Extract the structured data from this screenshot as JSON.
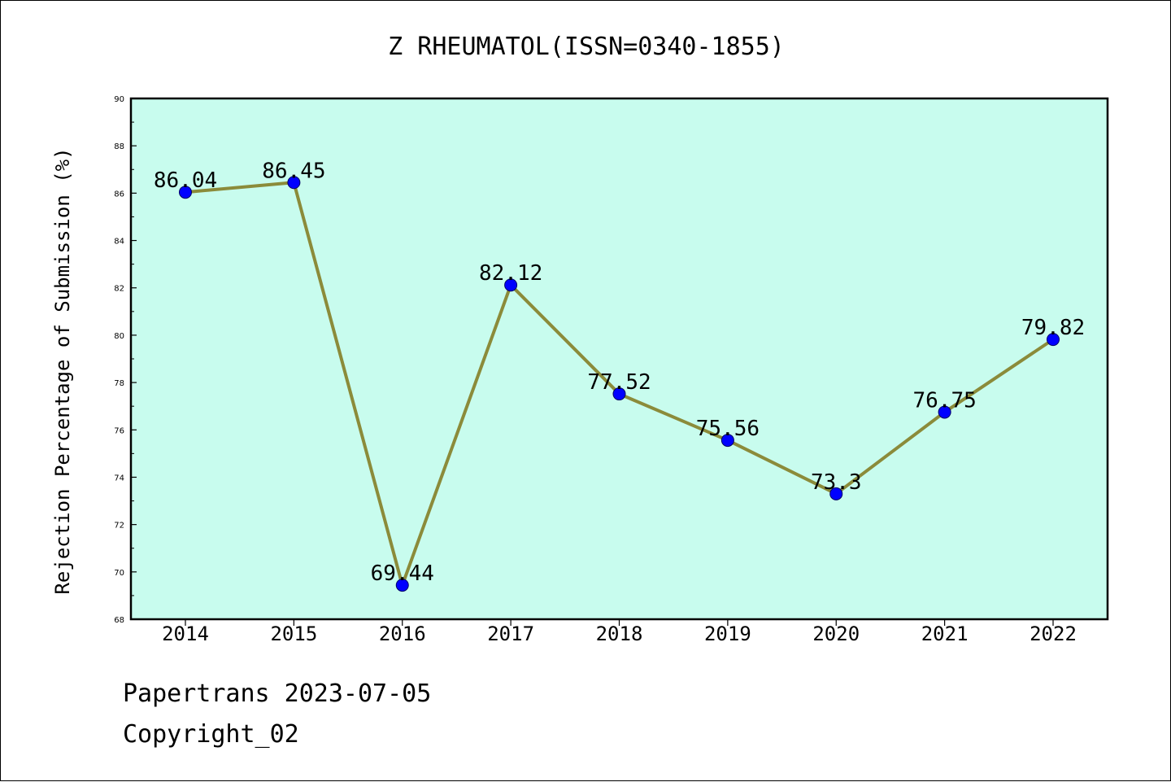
{
  "chart_data": {
    "type": "line",
    "title": "Z RHEUMATOL(ISSN=0340-1855)",
    "xlabel": "",
    "ylabel": "Rejection Percentage of Submission (%)",
    "categories": [
      "2014",
      "2015",
      "2016",
      "2017",
      "2018",
      "2019",
      "2020",
      "2021",
      "2022"
    ],
    "series": [
      {
        "values": [
          86.04,
          86.45,
          69.44,
          82.12,
          77.52,
          75.56,
          73.3,
          76.75,
          79.82
        ],
        "data_labels": [
          "86.04",
          "86.45",
          "69.44",
          "82.12",
          "77.52",
          "75.56",
          "73.3",
          "76.75",
          "79.82"
        ],
        "line_color": "#8b8b3a",
        "marker_color": "#0000ff"
      }
    ],
    "ylim": [
      68,
      90
    ],
    "yticks": [
      "68",
      "70",
      "72",
      "74",
      "76",
      "78",
      "80",
      "82",
      "84",
      "86",
      "88",
      "90"
    ],
    "plot_background": "#c8fcee",
    "grid": false,
    "legend": "none"
  },
  "footer": {
    "line1": "Papertrans 2023-07-05",
    "line2": "Copyright_02"
  }
}
